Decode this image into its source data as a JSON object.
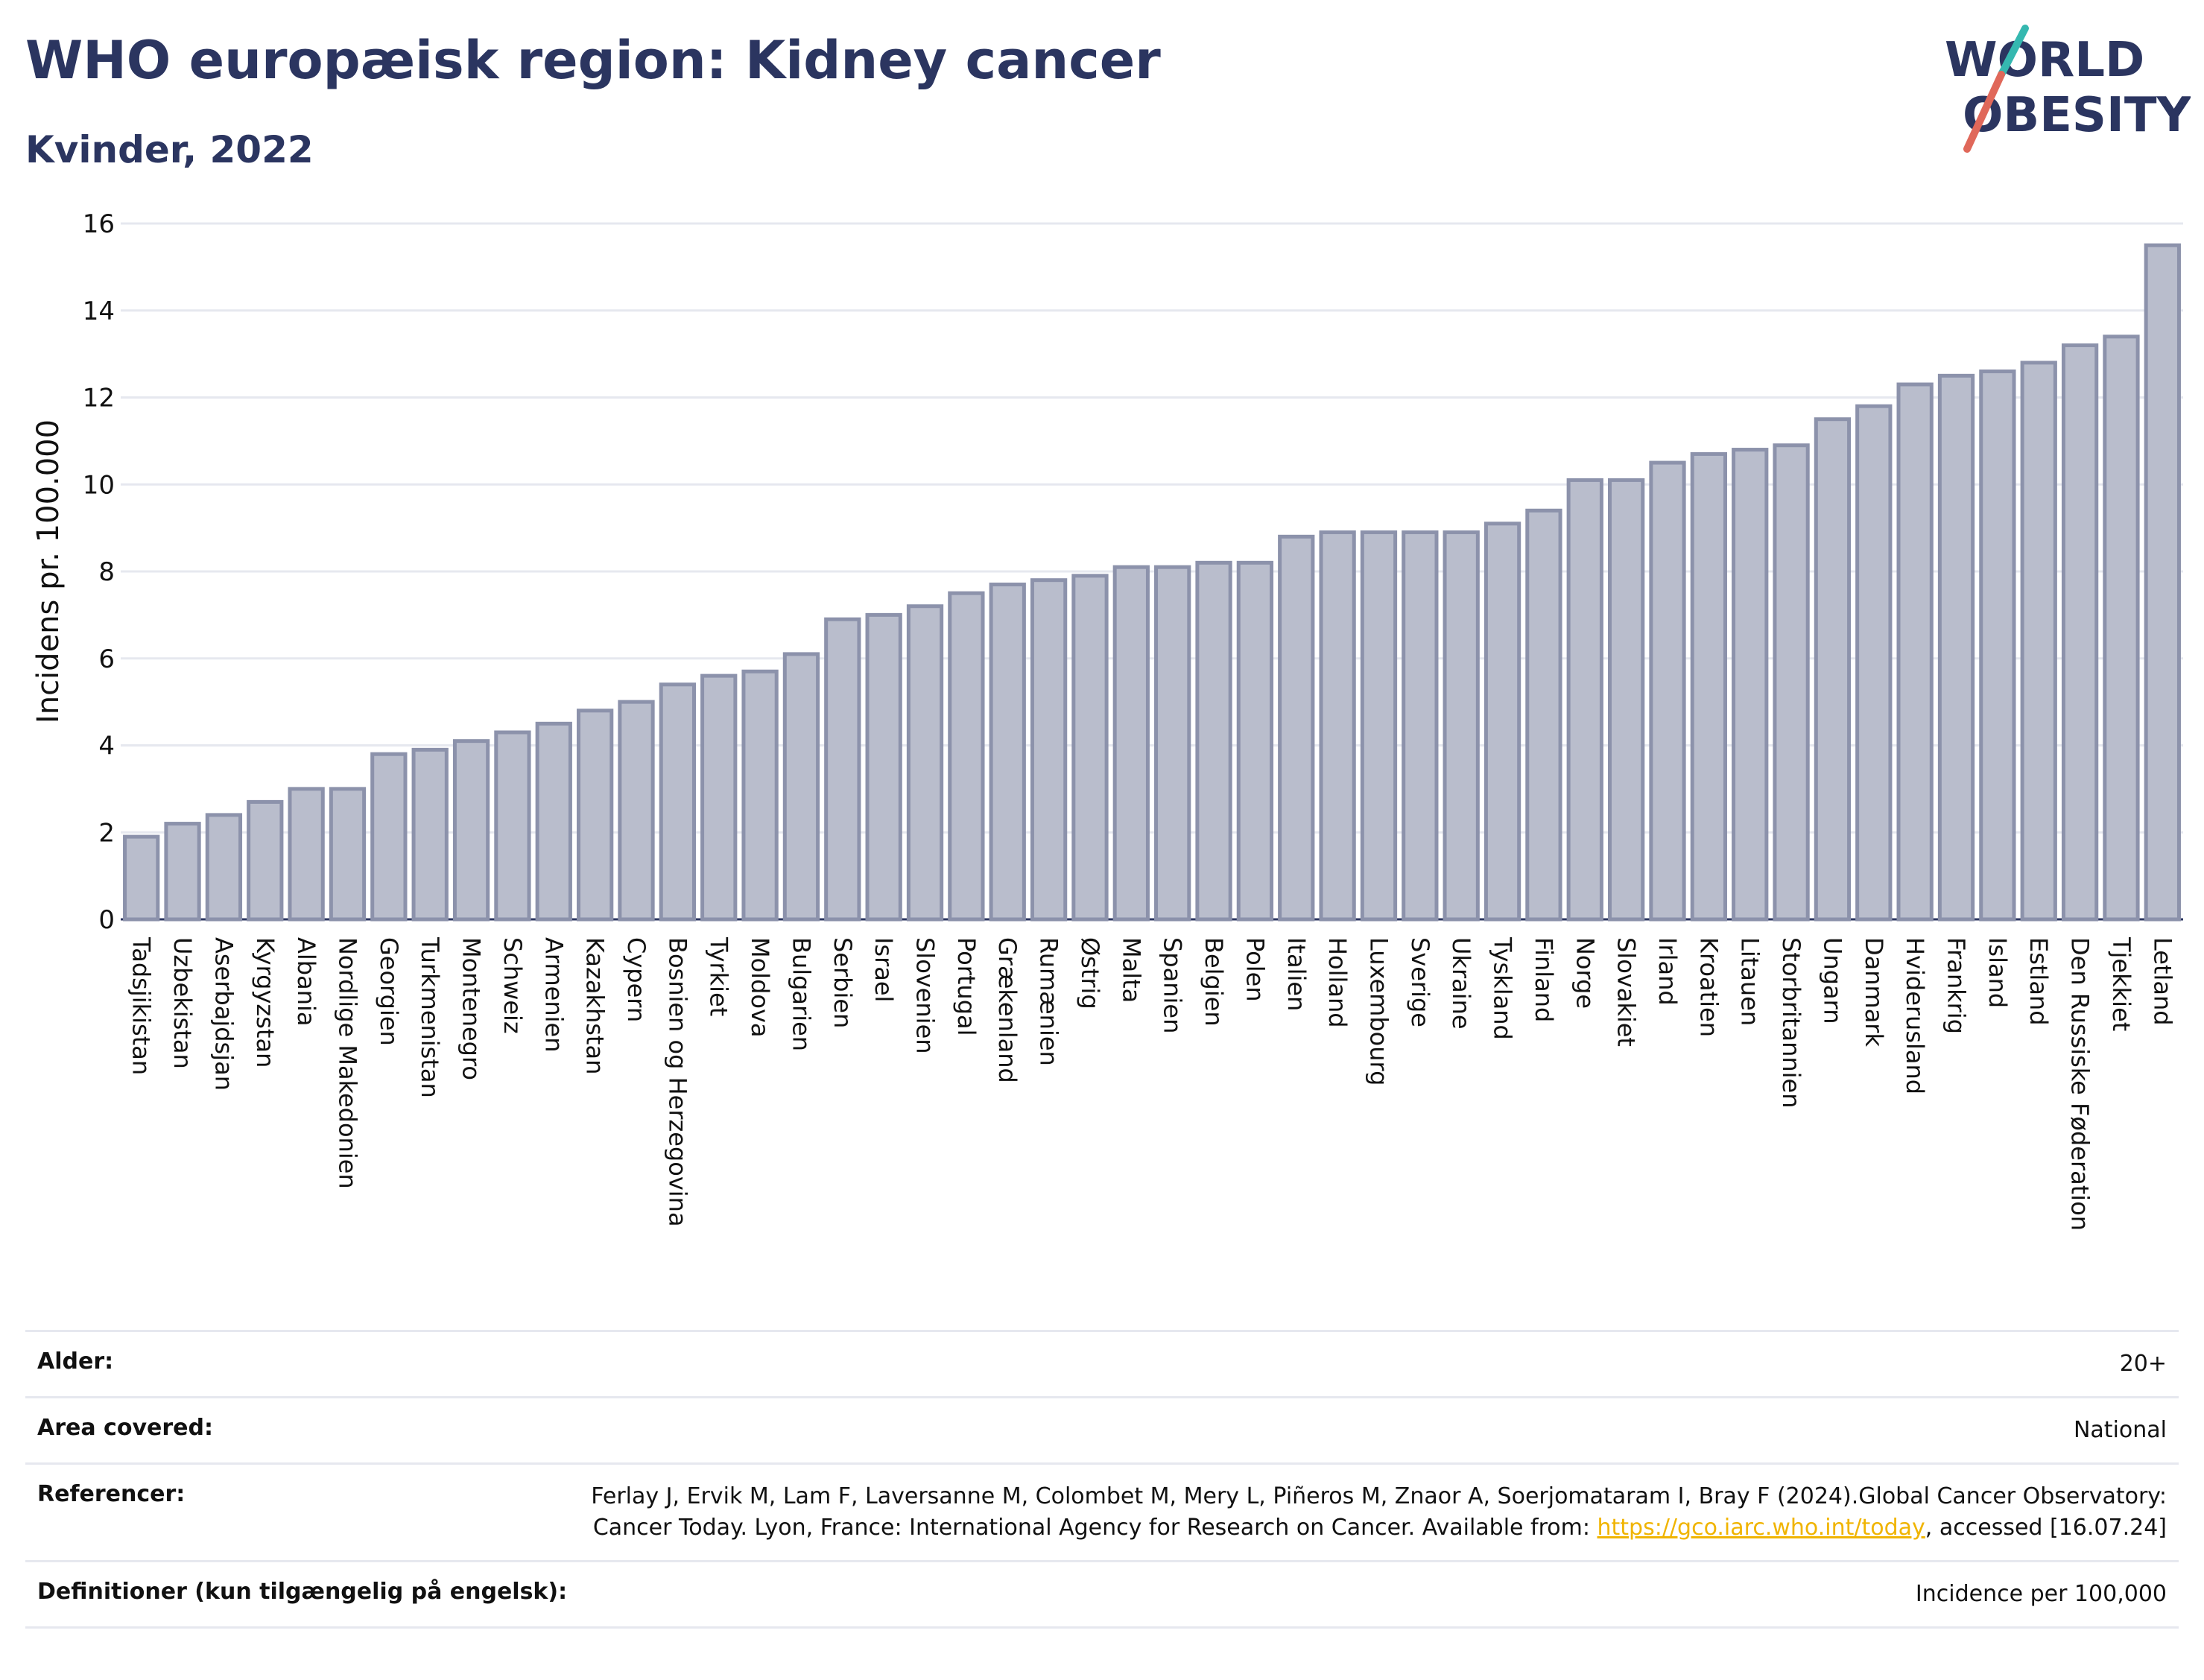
{
  "header": {
    "title": "WHO europæisk region: Kidney cancer",
    "subtitle": "Kvinder, 2022",
    "logo_line1": "WORLD",
    "logo_line2": "OBESITY"
  },
  "chart_data": {
    "type": "bar",
    "title": "WHO europæisk region: Kidney cancer",
    "subtitle": "Kvinder, 2022",
    "xlabel": "",
    "ylabel": "Incidens pr. 100.000",
    "ylim": [
      0,
      16
    ],
    "yticks": [
      0,
      2,
      4,
      6,
      8,
      10,
      12,
      14,
      16
    ],
    "grid": true,
    "bar_color": "#b9bdcc",
    "bar_edge_color": "#8c92ab",
    "categories": [
      "Tadsjikistan",
      "Uzbekistan",
      "Aserbajdsjan",
      "Kyrgyzstan",
      "Albania",
      "Nordlige Makedonien",
      "Georgien",
      "Turkmenistan",
      "Montenegro",
      "Schweiz",
      "Armenien",
      "Kazakhstan",
      "Cypern",
      "Bosnien og Herzegovina",
      "Tyrkiet",
      "Moldova",
      "Bulgarien",
      "Serbien",
      "Israel",
      "Slovenien",
      "Portugal",
      "Grækenland",
      "Rumænien",
      "Østrig",
      "Malta",
      "Spanien",
      "Belgien",
      "Polen",
      "Italien",
      "Holland",
      "Luxembourg",
      "Sverige",
      "Ukraine",
      "Tyskland",
      "Finland",
      "Norge",
      "Slovakiet",
      "Irland",
      "Kroatien",
      "Litauen",
      "Storbritannien",
      "Ungarn",
      "Danmark",
      "Hviderusland",
      "Frankrig",
      "Island",
      "Estland",
      "Den Russiske Føderation",
      "Tjekkiet",
      "Letland"
    ],
    "values": [
      1.9,
      2.2,
      2.4,
      2.7,
      3.0,
      3.0,
      3.8,
      3.9,
      4.1,
      4.3,
      4.5,
      4.8,
      5.0,
      5.4,
      5.6,
      5.7,
      6.1,
      6.9,
      7.0,
      7.2,
      7.5,
      7.7,
      7.8,
      7.9,
      8.1,
      8.1,
      8.2,
      8.2,
      8.8,
      8.9,
      8.9,
      8.9,
      8.9,
      9.1,
      9.4,
      10.1,
      10.1,
      10.5,
      10.7,
      10.8,
      10.9,
      11.5,
      11.8,
      12.3,
      12.5,
      12.6,
      12.8,
      13.2,
      13.4,
      15.5
    ]
  },
  "meta": {
    "rows": [
      {
        "key": "Alder:",
        "value": "20+"
      },
      {
        "key": "Area covered:",
        "value": "National"
      },
      {
        "key": "Referencer:",
        "value_pre": "Ferlay J, Ervik M, Lam F, Laversanne M, Colombet M, Mery L, Piñeros M, Znaor A, Soerjomataram I, Bray F (2024).Global Cancer Observatory: Cancer Today. Lyon, France: International Agency for Research on Cancer. Available from: ",
        "link": "https://gco.iarc.who.int/today",
        "value_post": ", accessed [16.07.24]"
      },
      {
        "key": "Definitioner (kun tilgængelig på engelsk):",
        "value": "Incidence per 100,000"
      }
    ]
  }
}
